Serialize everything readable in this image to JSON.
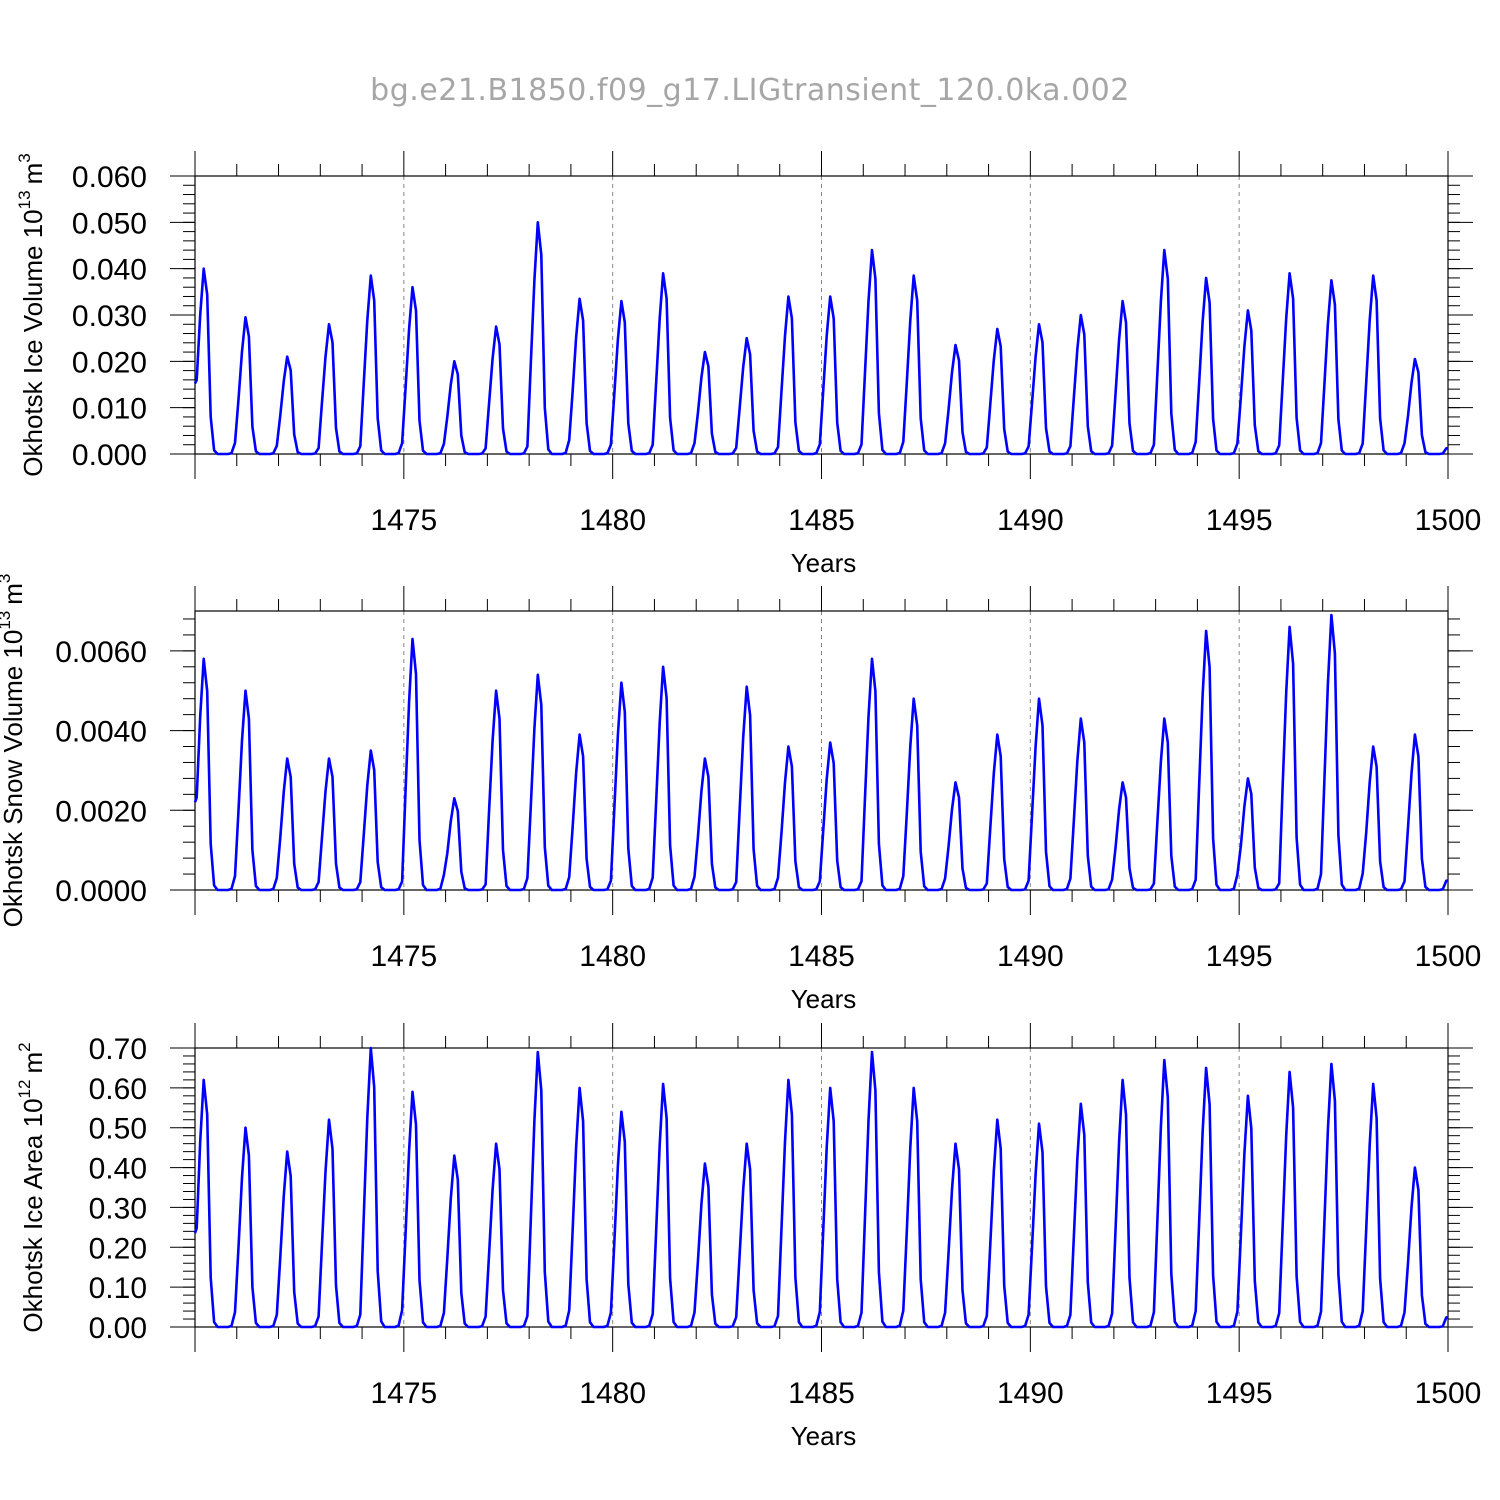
{
  "figure_title": "bg.e21.B1850.f09_g17.LIGtransient_120.0ka.002",
  "colors": {
    "series": "#0000ff",
    "title": "#a6a6a6",
    "grid": "#888888"
  },
  "chart_data": [
    {
      "type": "line",
      "ylabel": "Okhotsk Ice Volume 10",
      "ylabel_exp": "13",
      "ylabel_unit": "m",
      "ylabel_unit_exp": "3",
      "xlabel": "Years",
      "xlim": [
        1470.0,
        1500.0
      ],
      "ylim": [
        0.0,
        0.06
      ],
      "yticks": [
        "0.000",
        "0.010",
        "0.020",
        "0.030",
        "0.040",
        "0.050",
        "0.060"
      ],
      "xticks": [
        "1475",
        "1480",
        "1485",
        "1490",
        "1495",
        "1500"
      ],
      "grid": "vertical dashed at x ticks",
      "series": [
        {
          "peaks": [
            0.04,
            0.0295,
            0.021,
            0.028,
            0.0385,
            0.036,
            0.02,
            0.0275,
            0.05,
            0.0335,
            0.033,
            0.039,
            0.022,
            0.025,
            0.034,
            0.034,
            0.044,
            0.0385,
            0.0235,
            0.027,
            0.028,
            0.03,
            0.033,
            0.044,
            0.038,
            0.031,
            0.039,
            0.0375,
            0.0385,
            0.0205
          ]
        }
      ]
    },
    {
      "type": "line",
      "ylabel": "Okhotsk Snow Volume 10",
      "ylabel_exp": "13",
      "ylabel_unit": "m",
      "ylabel_unit_exp": "3",
      "xlabel": "Years",
      "xlim": [
        1470.0,
        1500.0
      ],
      "ylim": [
        0.0,
        0.007
      ],
      "yticks": [
        "0.0000",
        "0.0020",
        "0.0040",
        "0.0060"
      ],
      "xticks": [
        "1475",
        "1480",
        "1485",
        "1490",
        "1495",
        "1500"
      ],
      "grid": "vertical dashed at x ticks",
      "series": [
        {
          "peaks": [
            0.0058,
            0.005,
            0.0033,
            0.0033,
            0.0035,
            0.0063,
            0.0023,
            0.005,
            0.0054,
            0.0039,
            0.0052,
            0.0056,
            0.0033,
            0.0051,
            0.0036,
            0.0037,
            0.0058,
            0.0048,
            0.0027,
            0.0039,
            0.0048,
            0.0043,
            0.0027,
            0.0043,
            0.0065,
            0.0028,
            0.0066,
            0.0069,
            0.0036,
            0.0039
          ]
        }
      ]
    },
    {
      "type": "line",
      "ylabel": "Okhotsk Ice Area 10",
      "ylabel_exp": "12",
      "ylabel_unit": "m",
      "ylabel_unit_exp": "2",
      "xlabel": "Years",
      "xlim": [
        1470.0,
        1500.0
      ],
      "ylim": [
        0.0,
        0.7
      ],
      "yticks": [
        "0.00",
        "0.10",
        "0.20",
        "0.30",
        "0.40",
        "0.50",
        "0.60",
        "0.70"
      ],
      "xticks": [
        "1475",
        "1480",
        "1485",
        "1490",
        "1495",
        "1500"
      ],
      "grid": "vertical dashed at x ticks",
      "series": [
        {
          "peaks": [
            0.62,
            0.5,
            0.44,
            0.52,
            0.7,
            0.59,
            0.43,
            0.46,
            0.69,
            0.6,
            0.54,
            0.61,
            0.41,
            0.46,
            0.62,
            0.6,
            0.69,
            0.6,
            0.46,
            0.52,
            0.51,
            0.56,
            0.62,
            0.67,
            0.65,
            0.58,
            0.64,
            0.66,
            0.61,
            0.4
          ]
        }
      ]
    }
  ]
}
